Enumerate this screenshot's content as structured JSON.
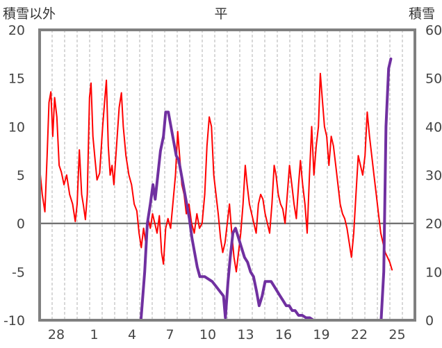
{
  "chart_data": {
    "type": "line",
    "title": "平",
    "left_axis_label": "積雪以外",
    "right_axis_label": "積雪",
    "left_axis": {
      "range": [
        -10,
        20
      ],
      "ticks": [
        "20",
        "15",
        "10",
        "5",
        "0",
        "-5",
        "-10"
      ]
    },
    "right_axis": {
      "range": [
        0,
        60
      ],
      "ticks": [
        "60",
        "50",
        "40",
        "30",
        "20",
        "10",
        "0"
      ]
    },
    "x_axis": {
      "range": [
        0,
        100
      ],
      "tick_labels": [
        "28",
        "1",
        "4",
        "7",
        "10",
        "13",
        "16",
        "19",
        "22",
        "25"
      ]
    },
    "grid": "vertical dashed, horizontal solid",
    "colors": {
      "red_series": "#ff0000",
      "purple_series": "#7030a0",
      "frame": "#808080",
      "zero_line": "#595959"
    },
    "series": [
      {
        "axis": "left",
        "color": "#ff0000",
        "points": [
          [
            0,
            5.8
          ],
          [
            0.7,
            3
          ],
          [
            1.4,
            1.2
          ],
          [
            2,
            7
          ],
          [
            2.5,
            12.5
          ],
          [
            3,
            13.6
          ],
          [
            3.5,
            9
          ],
          [
            4,
            13
          ],
          [
            4.6,
            11
          ],
          [
            5.2,
            6
          ],
          [
            5.8,
            5.3
          ],
          [
            6.5,
            4
          ],
          [
            7.2,
            5
          ],
          [
            8,
            3
          ],
          [
            8.8,
            2
          ],
          [
            9.5,
            0.2
          ],
          [
            10,
            2
          ],
          [
            10.6,
            7.6
          ],
          [
            11.2,
            3
          ],
          [
            11.7,
            1.8
          ],
          [
            12.2,
            0.4
          ],
          [
            12.7,
            3
          ],
          [
            13.3,
            13
          ],
          [
            13.7,
            14.5
          ],
          [
            14.2,
            9
          ],
          [
            14.8,
            6.5
          ],
          [
            15.3,
            4.5
          ],
          [
            16,
            5.2
          ],
          [
            16.8,
            10
          ],
          [
            17.4,
            13
          ],
          [
            17.8,
            14.8
          ],
          [
            18.3,
            8
          ],
          [
            18.8,
            5
          ],
          [
            19.3,
            6
          ],
          [
            19.8,
            4
          ],
          [
            20.5,
            8
          ],
          [
            21.2,
            12
          ],
          [
            21.8,
            13.5
          ],
          [
            22.3,
            10
          ],
          [
            23,
            7
          ],
          [
            23.8,
            5
          ],
          [
            24.5,
            4
          ],
          [
            25.2,
            2
          ],
          [
            25.9,
            1.3
          ],
          [
            26.5,
            -1
          ],
          [
            27.1,
            -2.5
          ],
          [
            27.7,
            -0.5
          ],
          [
            28.3,
            -2
          ],
          [
            28.9,
            0.5
          ],
          [
            29.5,
            -0.5
          ],
          [
            30.1,
            1
          ],
          [
            30.7,
            0
          ],
          [
            31.3,
            -1
          ],
          [
            31.9,
            0.8
          ],
          [
            32.5,
            -3
          ],
          [
            33,
            -4.2
          ],
          [
            33.6,
            -0.5
          ],
          [
            34.2,
            0.5
          ],
          [
            34.9,
            -0.5
          ],
          [
            35.5,
            2
          ],
          [
            36.2,
            5
          ],
          [
            36.8,
            9.5
          ],
          [
            37.3,
            7
          ],
          [
            37.9,
            4
          ],
          [
            38.5,
            3
          ],
          [
            39.1,
            1
          ],
          [
            39.8,
            2
          ],
          [
            40.5,
            0
          ],
          [
            41.2,
            -1
          ],
          [
            41.9,
            1
          ],
          [
            42.6,
            -0.5
          ],
          [
            43.3,
            0
          ],
          [
            44,
            3
          ],
          [
            44.6,
            8
          ],
          [
            45.2,
            11
          ],
          [
            45.8,
            10
          ],
          [
            46.4,
            5
          ],
          [
            47,
            3
          ],
          [
            47.6,
            1
          ],
          [
            48.2,
            -1.5
          ],
          [
            48.8,
            -3
          ],
          [
            49.4,
            -2
          ],
          [
            50,
            0
          ],
          [
            50.6,
            2
          ],
          [
            51.2,
            -1
          ],
          [
            51.8,
            -3.5
          ],
          [
            52.4,
            -5
          ],
          [
            53,
            -3
          ],
          [
            53.6,
            -1
          ],
          [
            54.2,
            2
          ],
          [
            54.8,
            6
          ],
          [
            55.3,
            4
          ],
          [
            55.9,
            2
          ],
          [
            56.5,
            1
          ],
          [
            57.1,
            0
          ],
          [
            57.7,
            -1
          ],
          [
            58.3,
            2
          ],
          [
            58.9,
            3
          ],
          [
            59.5,
            2.5
          ],
          [
            60.1,
            1
          ],
          [
            60.7,
            0
          ],
          [
            61.3,
            -1
          ],
          [
            61.9,
            2
          ],
          [
            62.5,
            6
          ],
          [
            63,
            5
          ],
          [
            63.6,
            3
          ],
          [
            64.2,
            2
          ],
          [
            64.8,
            1.5
          ],
          [
            65.4,
            0
          ],
          [
            66,
            3
          ],
          [
            66.6,
            6
          ],
          [
            67.2,
            4
          ],
          [
            67.8,
            2
          ],
          [
            68.4,
            0.5
          ],
          [
            69,
            4
          ],
          [
            69.5,
            6.5
          ],
          [
            70.1,
            4
          ],
          [
            70.7,
            2
          ],
          [
            71.3,
            -1
          ],
          [
            71.9,
            5
          ],
          [
            72.5,
            10
          ],
          [
            73.1,
            5
          ],
          [
            73.7,
            8
          ],
          [
            74.3,
            10
          ],
          [
            74.8,
            15.5
          ],
          [
            75.3,
            13
          ],
          [
            75.9,
            10
          ],
          [
            76.5,
            9
          ],
          [
            77.1,
            6
          ],
          [
            77.7,
            9
          ],
          [
            78.3,
            8
          ],
          [
            78.9,
            6
          ],
          [
            79.5,
            4
          ],
          [
            80.1,
            2
          ],
          [
            80.7,
            1
          ],
          [
            81.3,
            0.5
          ],
          [
            81.9,
            -0.5
          ],
          [
            82.5,
            -2
          ],
          [
            83.1,
            -3.5
          ],
          [
            83.7,
            -1
          ],
          [
            84.3,
            3
          ],
          [
            84.9,
            7
          ],
          [
            85.5,
            6
          ],
          [
            86.1,
            5
          ],
          [
            86.7,
            7
          ],
          [
            87.3,
            11.5
          ],
          [
            87.9,
            9
          ],
          [
            88.5,
            7
          ],
          [
            89.1,
            5
          ],
          [
            89.7,
            3
          ],
          [
            90.3,
            1
          ],
          [
            90.9,
            -1
          ],
          [
            91.5,
            -2
          ],
          [
            92.1,
            -3
          ],
          [
            92.7,
            -3.5
          ],
          [
            93.3,
            -4
          ],
          [
            93.9,
            -4.8
          ]
        ]
      },
      {
        "axis": "right",
        "color": "#7030a0",
        "points": [
          [
            0,
            0
          ],
          [
            10,
            0
          ],
          [
            20,
            0
          ],
          [
            27,
            0
          ],
          [
            28,
            10
          ],
          [
            28.7,
            20
          ],
          [
            29.5,
            24
          ],
          [
            30.2,
            28
          ],
          [
            30.8,
            25
          ],
          [
            31.5,
            30
          ],
          [
            32.2,
            35
          ],
          [
            33,
            38
          ],
          [
            33.6,
            43
          ],
          [
            34.3,
            43
          ],
          [
            35,
            40
          ],
          [
            35.7,
            37
          ],
          [
            36.4,
            34
          ],
          [
            37.1,
            33
          ],
          [
            37.8,
            30
          ],
          [
            38.5,
            27
          ],
          [
            39.2,
            24
          ],
          [
            39.9,
            21
          ],
          [
            40.6,
            17
          ],
          [
            41.3,
            14
          ],
          [
            42,
            11
          ],
          [
            42.7,
            9
          ],
          [
            44,
            9
          ],
          [
            46,
            8
          ],
          [
            47,
            7
          ],
          [
            48,
            6
          ],
          [
            49,
            5
          ],
          [
            49.5,
            0.5
          ],
          [
            50.2,
            8
          ],
          [
            50.8,
            13
          ],
          [
            51.5,
            18
          ],
          [
            52.2,
            19
          ],
          [
            53,
            17
          ],
          [
            53.8,
            15
          ],
          [
            54.6,
            13
          ],
          [
            55.4,
            12
          ],
          [
            56.2,
            10
          ],
          [
            57,
            9
          ],
          [
            57.8,
            6
          ],
          [
            58.5,
            3
          ],
          [
            59.3,
            5
          ],
          [
            60.1,
            8
          ],
          [
            60.9,
            8
          ],
          [
            61.7,
            8
          ],
          [
            62.5,
            7
          ],
          [
            63.3,
            6
          ],
          [
            64.1,
            5
          ],
          [
            64.9,
            4
          ],
          [
            65.7,
            3
          ],
          [
            66.5,
            3
          ],
          [
            67.3,
            2
          ],
          [
            68.1,
            2
          ],
          [
            69,
            1
          ],
          [
            70,
            1
          ],
          [
            71,
            0.5
          ],
          [
            72,
            0.5
          ],
          [
            73,
            0
          ],
          [
            80,
            0
          ],
          [
            90,
            0
          ],
          [
            91,
            0
          ],
          [
            91.7,
            10
          ],
          [
            92.3,
            40
          ],
          [
            93,
            52
          ],
          [
            93.6,
            54
          ]
        ]
      }
    ]
  }
}
